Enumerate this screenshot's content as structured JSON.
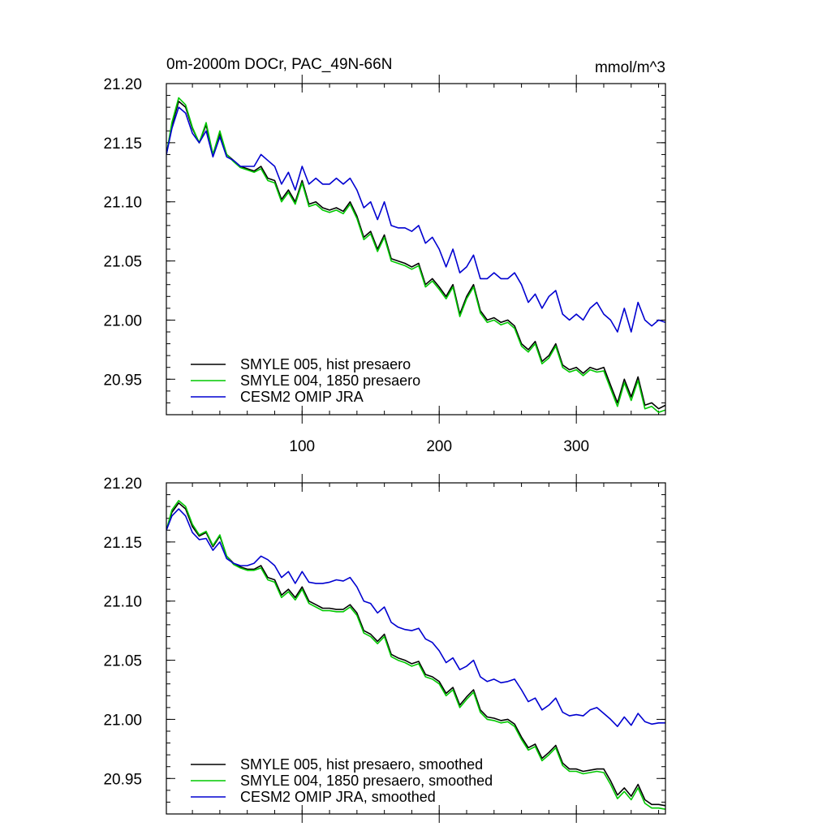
{
  "chart_data": [
    {
      "type": "line",
      "title": "0m-2000m DOCr, PAC_49N-66N",
      "units": "mmol/m^3",
      "xlim": [
        1,
        365
      ],
      "ylim": [
        20.92,
        21.2
      ],
      "x_ticks": [
        100,
        200,
        300
      ],
      "y_ticks": [
        "21.20",
        "21.15",
        "21.10",
        "21.05",
        "21.00",
        "20.95"
      ],
      "legend": "bottom-left",
      "series": [
        {
          "name": "SMYLE 005, hist presaero",
          "color": "#000000",
          "x": [
            1,
            5,
            10,
            15,
            20,
            25,
            30,
            35,
            40,
            45,
            50,
            55,
            60,
            65,
            70,
            75,
            80,
            85,
            90,
            95,
            100,
            105,
            110,
            115,
            120,
            125,
            130,
            135,
            140,
            145,
            150,
            155,
            160,
            165,
            170,
            175,
            180,
            185,
            190,
            195,
            200,
            205,
            210,
            215,
            220,
            225,
            230,
            235,
            240,
            245,
            250,
            255,
            260,
            265,
            270,
            275,
            280,
            285,
            290,
            295,
            300,
            305,
            310,
            315,
            320,
            325,
            330,
            335,
            340,
            345,
            350,
            355,
            360,
            365
          ],
          "values": [
            21.14,
            21.165,
            21.185,
            21.18,
            21.162,
            21.15,
            21.165,
            21.14,
            21.158,
            21.14,
            21.135,
            21.13,
            21.128,
            21.126,
            21.13,
            21.12,
            21.118,
            21.102,
            21.11,
            21.1,
            21.118,
            21.098,
            21.1,
            21.095,
            21.093,
            21.095,
            21.092,
            21.1,
            21.088,
            21.07,
            21.075,
            21.06,
            21.072,
            21.052,
            21.05,
            21.048,
            21.045,
            21.048,
            21.03,
            21.035,
            21.028,
            21.02,
            21.03,
            21.005,
            21.02,
            21.03,
            21.008,
            21.0,
            21.002,
            20.998,
            21.0,
            20.995,
            20.98,
            20.975,
            20.982,
            20.965,
            20.97,
            20.98,
            20.962,
            20.958,
            20.96,
            20.955,
            20.96,
            20.958,
            20.96,
            20.945,
            20.93,
            20.95,
            20.935,
            20.952,
            20.928,
            20.93,
            20.925,
            20.928
          ]
        },
        {
          "name": "SMYLE 004, 1850 presaero",
          "color": "#00c800",
          "x": [
            1,
            5,
            10,
            15,
            20,
            25,
            30,
            35,
            40,
            45,
            50,
            55,
            60,
            65,
            70,
            75,
            80,
            85,
            90,
            95,
            100,
            105,
            110,
            115,
            120,
            125,
            130,
            135,
            140,
            145,
            150,
            155,
            160,
            165,
            170,
            175,
            180,
            185,
            190,
            195,
            200,
            205,
            210,
            215,
            220,
            225,
            230,
            235,
            240,
            245,
            250,
            255,
            260,
            265,
            270,
            275,
            280,
            285,
            290,
            295,
            300,
            305,
            310,
            315,
            320,
            325,
            330,
            335,
            340,
            345,
            350,
            355,
            360,
            365
          ],
          "values": [
            21.14,
            21.167,
            21.188,
            21.182,
            21.163,
            21.15,
            21.167,
            21.14,
            21.16,
            21.14,
            21.134,
            21.129,
            21.127,
            21.125,
            21.128,
            21.118,
            21.116,
            21.1,
            21.108,
            21.098,
            21.116,
            21.096,
            21.098,
            21.093,
            21.091,
            21.093,
            21.09,
            21.098,
            21.086,
            21.068,
            21.073,
            21.058,
            21.07,
            21.05,
            21.048,
            21.046,
            21.043,
            21.046,
            21.028,
            21.033,
            21.026,
            21.018,
            21.028,
            21.003,
            21.018,
            21.028,
            21.006,
            20.998,
            21.0,
            20.996,
            20.998,
            20.993,
            20.978,
            20.973,
            20.98,
            20.963,
            20.968,
            20.978,
            20.96,
            20.956,
            20.958,
            20.953,
            20.958,
            20.956,
            20.957,
            20.942,
            20.927,
            20.947,
            20.932,
            20.949,
            20.925,
            20.927,
            20.922,
            20.924
          ]
        },
        {
          "name": "CESM2 OMIP JRA",
          "color": "#0000d0",
          "x": [
            1,
            5,
            10,
            15,
            20,
            25,
            30,
            35,
            40,
            45,
            50,
            55,
            60,
            65,
            70,
            75,
            80,
            85,
            90,
            95,
            100,
            105,
            110,
            115,
            120,
            125,
            130,
            135,
            140,
            145,
            150,
            155,
            160,
            165,
            170,
            175,
            180,
            185,
            190,
            195,
            200,
            205,
            210,
            215,
            220,
            225,
            230,
            235,
            240,
            245,
            250,
            255,
            260,
            265,
            270,
            275,
            280,
            285,
            290,
            295,
            300,
            305,
            310,
            315,
            320,
            325,
            330,
            335,
            340,
            345,
            350,
            355,
            360,
            365
          ],
          "values": [
            21.14,
            21.162,
            21.18,
            21.175,
            21.158,
            21.15,
            21.16,
            21.138,
            21.155,
            21.138,
            21.135,
            21.13,
            21.13,
            21.13,
            21.14,
            21.135,
            21.13,
            21.115,
            21.125,
            21.11,
            21.13,
            21.115,
            21.12,
            21.115,
            21.115,
            21.12,
            21.115,
            21.12,
            21.11,
            21.095,
            21.1,
            21.085,
            21.1,
            21.08,
            21.078,
            21.078,
            21.075,
            21.08,
            21.065,
            21.07,
            21.06,
            21.045,
            21.06,
            21.04,
            21.045,
            21.055,
            21.035,
            21.035,
            21.04,
            21.035,
            21.035,
            21.04,
            21.03,
            21.015,
            21.022,
            21.01,
            21.02,
            21.025,
            21.005,
            21.0,
            21.005,
            21.0,
            21.01,
            21.015,
            21.005,
            21.0,
            20.99,
            21.01,
            20.99,
            21.015,
            21.0,
            20.995,
            21.0,
            20.998
          ]
        }
      ]
    },
    {
      "type": "line",
      "title": "",
      "xlim": [
        1,
        365
      ],
      "ylim": [
        20.92,
        21.2
      ],
      "x_ticks": [
        100,
        200,
        300
      ],
      "y_ticks": [
        "21.20",
        "21.15",
        "21.10",
        "21.05",
        "21.00",
        "20.95"
      ],
      "legend": "bottom-left",
      "series": [
        {
          "name": "SMYLE 005, hist presaero, smoothed",
          "color": "#000000",
          "x": [
            1,
            5,
            10,
            15,
            20,
            25,
            30,
            35,
            40,
            45,
            50,
            55,
            60,
            65,
            70,
            75,
            80,
            85,
            90,
            95,
            100,
            105,
            110,
            115,
            120,
            125,
            130,
            135,
            140,
            145,
            150,
            155,
            160,
            165,
            170,
            175,
            180,
            185,
            190,
            195,
            200,
            205,
            210,
            215,
            220,
            225,
            230,
            235,
            240,
            245,
            250,
            255,
            260,
            265,
            270,
            275,
            280,
            285,
            290,
            295,
            300,
            305,
            310,
            315,
            320,
            325,
            330,
            335,
            340,
            345,
            350,
            355,
            360,
            365
          ],
          "values": [
            21.16,
            21.175,
            21.183,
            21.178,
            21.163,
            21.155,
            21.158,
            21.146,
            21.155,
            21.138,
            21.132,
            21.129,
            21.127,
            21.127,
            21.13,
            21.12,
            21.118,
            21.105,
            21.11,
            21.103,
            21.112,
            21.1,
            21.097,
            21.094,
            21.094,
            21.093,
            21.093,
            21.097,
            21.09,
            21.075,
            21.072,
            21.066,
            21.072,
            21.055,
            21.052,
            21.05,
            21.047,
            21.049,
            21.038,
            21.036,
            21.032,
            21.022,
            21.027,
            21.012,
            21.019,
            21.025,
            21.008,
            21.002,
            21.001,
            20.999,
            21.0,
            20.996,
            20.985,
            20.976,
            20.979,
            20.967,
            20.972,
            20.978,
            20.963,
            20.958,
            20.958,
            20.956,
            20.957,
            20.958,
            20.958,
            20.948,
            20.936,
            20.942,
            20.935,
            20.945,
            20.932,
            20.928,
            20.928,
            20.927
          ]
        },
        {
          "name": "SMYLE 004, 1850 presaero, smoothed",
          "color": "#00c800",
          "x": [
            1,
            5,
            10,
            15,
            20,
            25,
            30,
            35,
            40,
            45,
            50,
            55,
            60,
            65,
            70,
            75,
            80,
            85,
            90,
            95,
            100,
            105,
            110,
            115,
            120,
            125,
            130,
            135,
            140,
            145,
            150,
            155,
            160,
            165,
            170,
            175,
            180,
            185,
            190,
            195,
            200,
            205,
            210,
            215,
            220,
            225,
            230,
            235,
            240,
            245,
            250,
            255,
            260,
            265,
            270,
            275,
            280,
            285,
            290,
            295,
            300,
            305,
            310,
            315,
            320,
            325,
            330,
            335,
            340,
            345,
            350,
            355,
            360,
            365
          ],
          "values": [
            21.16,
            21.177,
            21.185,
            21.18,
            21.165,
            21.156,
            21.159,
            21.147,
            21.156,
            21.138,
            21.131,
            21.128,
            21.126,
            21.126,
            21.128,
            21.118,
            21.116,
            21.103,
            21.108,
            21.101,
            21.11,
            21.098,
            21.095,
            21.092,
            21.092,
            21.091,
            21.091,
            21.095,
            21.088,
            21.073,
            21.07,
            21.064,
            21.07,
            21.053,
            21.05,
            21.048,
            21.045,
            21.047,
            21.036,
            21.034,
            21.03,
            21.02,
            21.025,
            21.01,
            21.017,
            21.023,
            21.006,
            21.0,
            20.999,
            20.997,
            20.998,
            20.994,
            20.983,
            20.974,
            20.977,
            20.965,
            20.97,
            20.976,
            20.961,
            20.956,
            20.956,
            20.954,
            20.955,
            20.956,
            20.955,
            20.945,
            20.933,
            20.939,
            20.932,
            20.942,
            20.929,
            20.925,
            20.925,
            20.924
          ]
        },
        {
          "name": "CESM2 OMIP JRA, smoothed",
          "color": "#0000d0",
          "x": [
            1,
            5,
            10,
            15,
            20,
            25,
            30,
            35,
            40,
            45,
            50,
            55,
            60,
            65,
            70,
            75,
            80,
            85,
            90,
            95,
            100,
            105,
            110,
            115,
            120,
            125,
            130,
            135,
            140,
            145,
            150,
            155,
            160,
            165,
            170,
            175,
            180,
            185,
            190,
            195,
            200,
            205,
            210,
            215,
            220,
            225,
            230,
            235,
            240,
            245,
            250,
            255,
            260,
            265,
            270,
            275,
            280,
            285,
            290,
            295,
            300,
            305,
            310,
            315,
            320,
            325,
            330,
            335,
            340,
            345,
            350,
            355,
            360,
            365
          ],
          "values": [
            21.16,
            21.172,
            21.178,
            21.172,
            21.158,
            21.152,
            21.153,
            21.143,
            21.15,
            21.136,
            21.132,
            21.13,
            21.13,
            21.132,
            21.138,
            21.135,
            21.13,
            21.12,
            21.125,
            21.115,
            21.125,
            21.116,
            21.115,
            21.115,
            21.116,
            21.118,
            21.117,
            21.12,
            21.112,
            21.1,
            21.098,
            21.09,
            21.095,
            21.082,
            21.078,
            21.076,
            21.075,
            21.077,
            21.068,
            21.065,
            21.058,
            21.048,
            21.052,
            21.042,
            21.045,
            21.05,
            21.036,
            21.032,
            21.034,
            21.031,
            21.032,
            21.034,
            21.025,
            21.015,
            21.018,
            21.008,
            21.012,
            21.018,
            21.006,
            21.003,
            21.004,
            21.003,
            21.008,
            21.01,
            21.005,
            21.0,
            20.994,
            21.002,
            20.995,
            21.005,
            20.998,
            20.996,
            20.997,
            20.997
          ]
        }
      ]
    }
  ]
}
